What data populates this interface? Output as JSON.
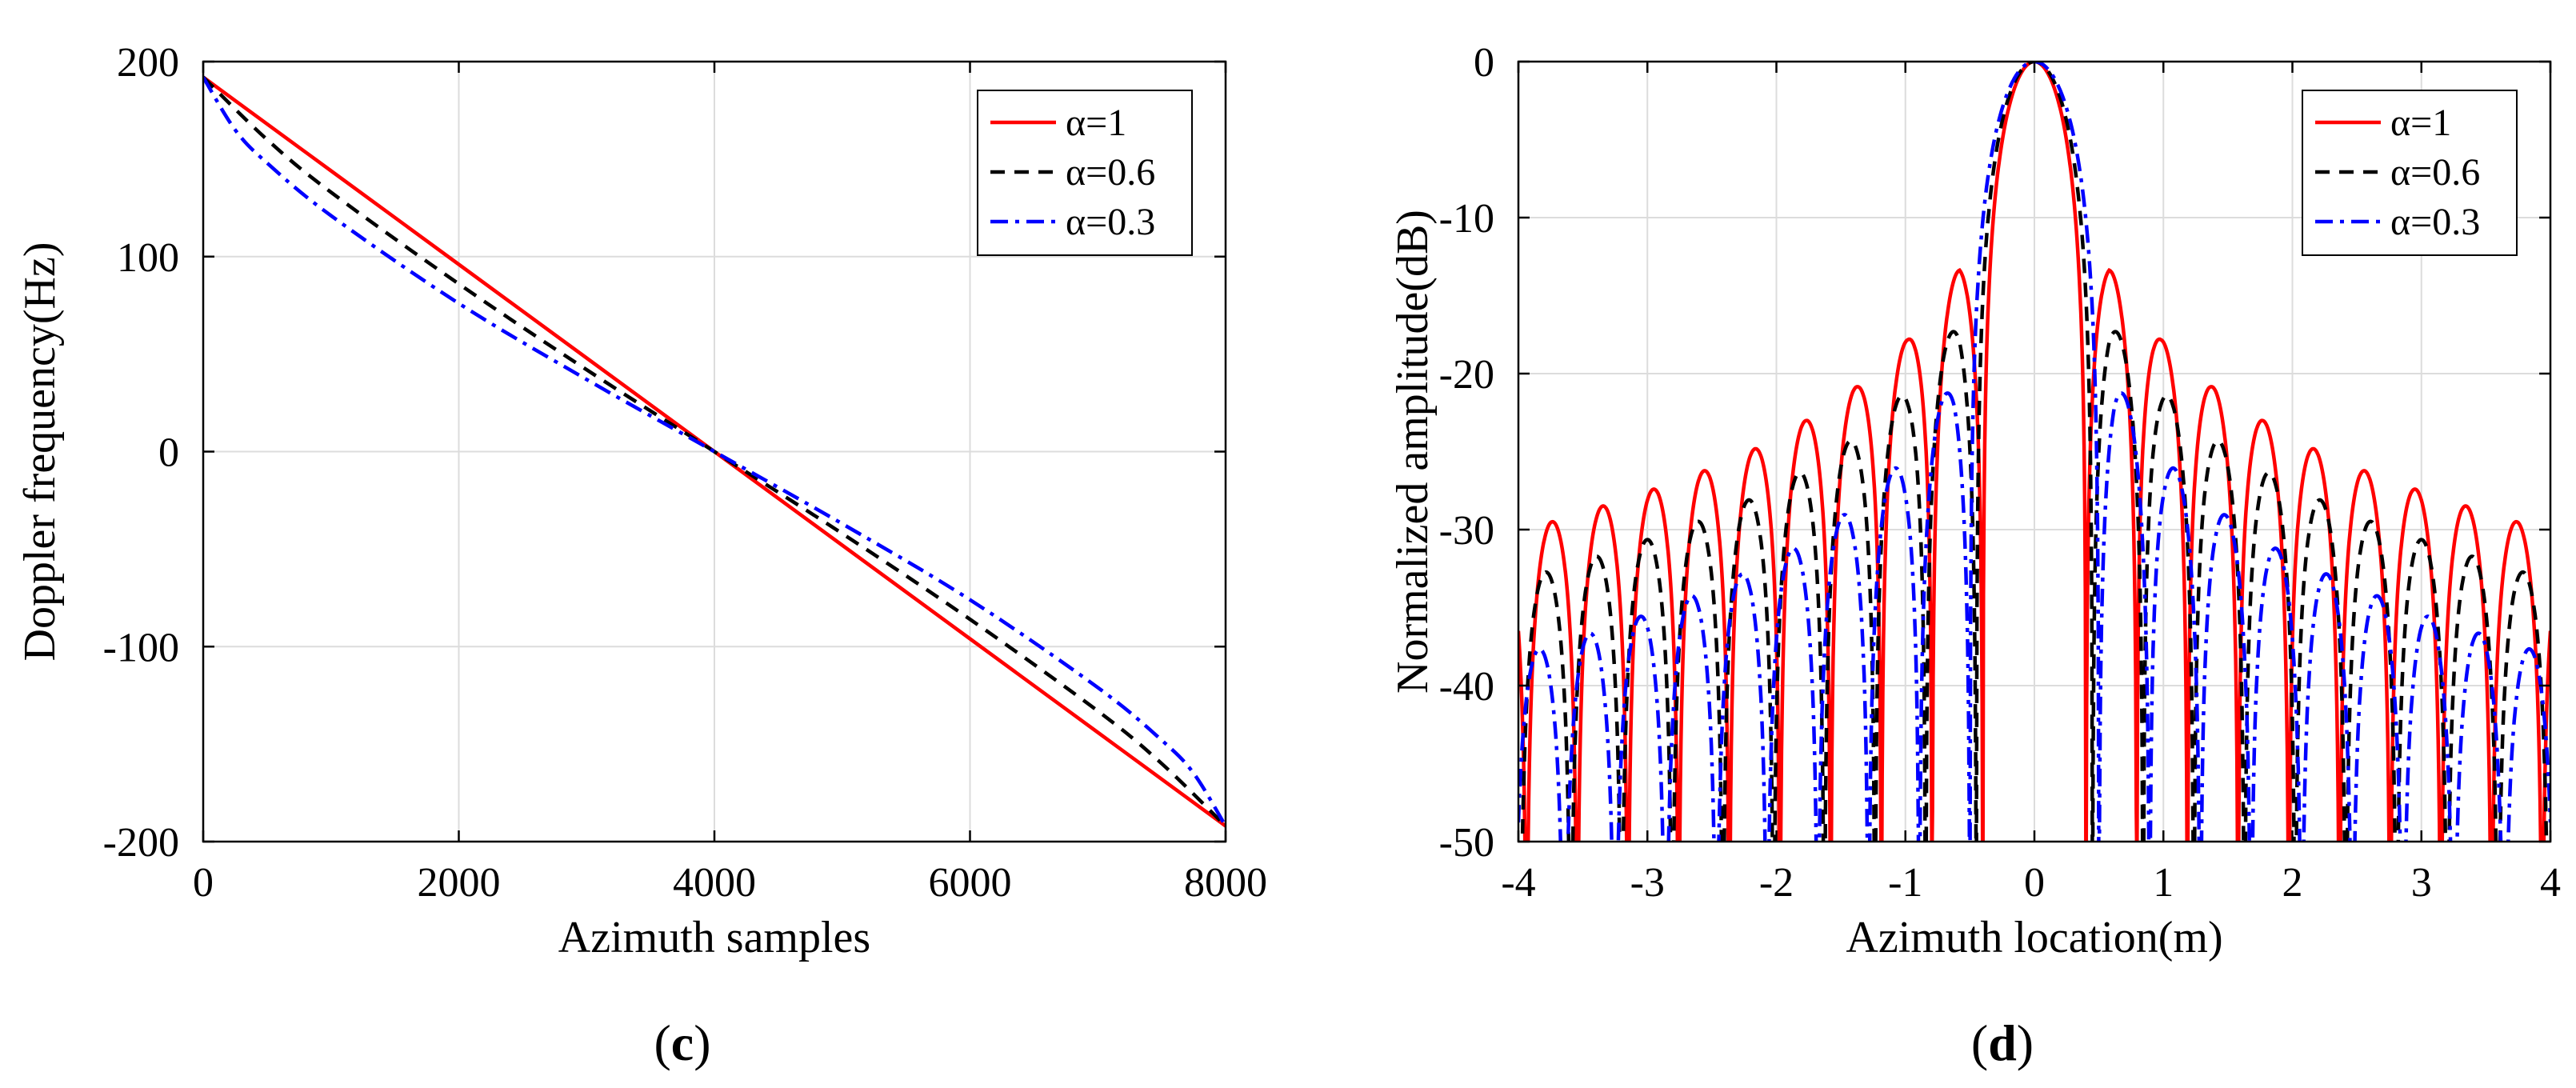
{
  "chart_data": [
    {
      "panel_label": "c",
      "type": "line",
      "title": "",
      "xlabel": "Azimuth samples",
      "ylabel": "Doppler frequency(Hz)",
      "xlim": [
        0,
        8000
      ],
      "ylim": [
        -200,
        200
      ],
      "xticks": [
        0,
        2000,
        4000,
        6000,
        8000
      ],
      "yticks": [
        -200,
        -100,
        0,
        100,
        200
      ],
      "grid": true,
      "legend_position": "top-right",
      "series": [
        {
          "name": "α=1",
          "color": "#ff0000",
          "dash": "solid",
          "x": [
            0,
            1000,
            2000,
            3000,
            4000,
            5000,
            6000,
            7000,
            8000
          ],
          "y": [
            192,
            144,
            96,
            48,
            0,
            -48,
            -96,
            -144,
            -192
          ]
        },
        {
          "name": "α=0.6",
          "color": "#000000",
          "dash": "dashed",
          "x": [
            0,
            500,
            1000,
            2000,
            3000,
            4000,
            5000,
            6000,
            7000,
            7500,
            8000
          ],
          "y": [
            192,
            160,
            133,
            86,
            42,
            0,
            -42,
            -86,
            -133,
            -160,
            -192
          ]
        },
        {
          "name": "α=0.3",
          "color": "#0000ff",
          "dash": "dashdot",
          "x": [
            0,
            250,
            500,
            1000,
            2000,
            3000,
            4000,
            5000,
            6000,
            7000,
            7500,
            7750,
            8000
          ],
          "y": [
            192,
            165,
            148,
            121,
            76,
            37,
            0,
            -37,
            -76,
            -121,
            -148,
            -165,
            -192
          ]
        }
      ]
    },
    {
      "panel_label": "d",
      "type": "line",
      "title": "",
      "xlabel": "Azimuth location(m)",
      "ylabel": "Normalized amplitude(dB)",
      "xlim": [
        -4,
        4
      ],
      "ylim": [
        -50,
        0
      ],
      "xticks": [
        -4,
        -3,
        -2,
        -1,
        0,
        1,
        2,
        3,
        4
      ],
      "yticks": [
        -50,
        -40,
        -30,
        -20,
        -10,
        0
      ],
      "grid": true,
      "legend_position": "top-right",
      "series": [
        {
          "name": "α=1",
          "color": "#ff0000",
          "dash": "solid",
          "mainlobe_null_m": 0.4,
          "sidelobe_peaks_x": [
            0.58,
            0.98,
            1.37,
            1.77,
            2.16,
            2.55,
            2.95,
            3.35,
            3.74
          ],
          "sidelobe_peaks_db": [
            -13.3,
            -17.8,
            -20.8,
            -23.0,
            -24.8,
            -26.2,
            -27.4,
            -28.5,
            -29.5
          ]
        },
        {
          "name": "α=0.6",
          "color": "#000000",
          "dash": "dashed",
          "mainlobe_null_m": 0.45,
          "sidelobe_peaks_x": [
            0.58,
            0.98,
            1.37,
            1.77,
            2.16,
            2.55,
            2.95,
            3.35,
            3.74
          ],
          "sidelobe_peaks_db": [
            -16.7,
            -21.0,
            -24.0,
            -26.1,
            -27.9,
            -29.3,
            -30.5,
            -31.6,
            -32.6
          ]
        },
        {
          "name": "α=0.3",
          "color": "#0000ff",
          "dash": "dashdot",
          "mainlobe_null_m": 0.5,
          "sidelobe_peaks_x": [
            0.62,
            1.0,
            1.4,
            1.78,
            2.17,
            2.56,
            2.96,
            3.35,
            3.74
          ],
          "sidelobe_peaks_db": [
            -20.4,
            -25.4,
            -28.6,
            -30.8,
            -32.5,
            -33.9,
            -35.3,
            -36.4,
            -37.4
          ]
        }
      ]
    }
  ]
}
